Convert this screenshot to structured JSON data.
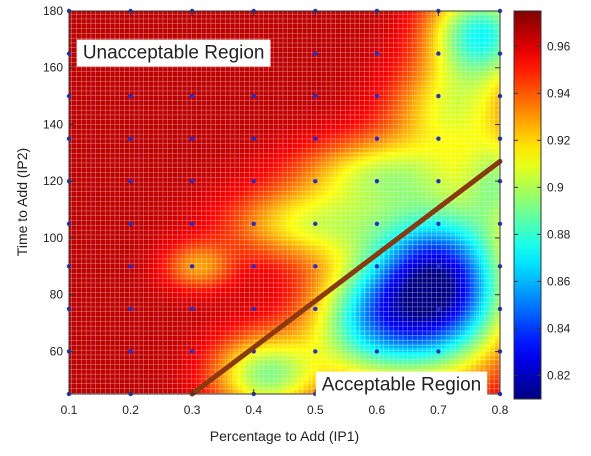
{
  "chart_data": {
    "type": "heatmap",
    "xlabel": "Percentage to Add (IP1)",
    "ylabel": "Time to Add  (IP2)",
    "xlim": [
      0.1,
      0.8
    ],
    "ylim": [
      45,
      180
    ],
    "xticks": [
      0.1,
      0.2,
      0.3,
      0.4,
      0.5,
      0.6,
      0.7,
      0.8
    ],
    "xtick_labels": [
      "0.1",
      "0.2",
      "0.3",
      "0.4",
      "0.5",
      "0.6",
      "0.7",
      "0.8"
    ],
    "yticks": [
      60,
      80,
      100,
      120,
      140,
      160,
      180
    ],
    "ytick_labels": [
      "60",
      "80",
      "100",
      "120",
      "140",
      "160",
      "180"
    ],
    "colorbar": {
      "range": [
        0.81,
        0.975
      ],
      "ticks": [
        0.82,
        0.84,
        0.86,
        0.88,
        0.9,
        0.92,
        0.94,
        0.96
      ],
      "tick_labels": [
        "0.82",
        "0.84",
        "0.86",
        "0.88",
        "0.9",
        "0.92",
        "0.94",
        "0.96"
      ],
      "colormap": "jet"
    },
    "z_base": 0.965,
    "features": [
      {
        "x": 0.7,
        "y": 83,
        "sx": 0.08,
        "sy": 20,
        "amp": -0.15
      },
      {
        "x": 0.58,
        "y": 70,
        "sx": 0.07,
        "sy": 15,
        "amp": -0.07
      },
      {
        "x": 0.42,
        "y": 52,
        "sx": 0.06,
        "sy": 10,
        "amp": -0.07
      },
      {
        "x": 0.49,
        "y": 105,
        "sx": 0.09,
        "sy": 9,
        "amp": -0.05
      },
      {
        "x": 0.6,
        "y": 123,
        "sx": 0.09,
        "sy": 9,
        "amp": -0.05
      },
      {
        "x": 0.77,
        "y": 172,
        "sx": 0.06,
        "sy": 12,
        "amp": -0.09
      },
      {
        "x": 0.72,
        "y": 145,
        "sx": 0.07,
        "sy": 12,
        "amp": -0.05
      },
      {
        "x": 0.31,
        "y": 90,
        "sx": 0.04,
        "sy": 6,
        "amp": -0.035
      },
      {
        "x": 0.8,
        "y": 120,
        "sx": 0.04,
        "sy": 12,
        "amp": -0.05
      }
    ],
    "boundary_line": {
      "x": [
        0.3,
        0.8
      ],
      "y": [
        45,
        127
      ],
      "color": "#8b3a10"
    },
    "sample_points": {
      "x": [
        0.1,
        0.2,
        0.3,
        0.4,
        0.5,
        0.6,
        0.7,
        0.8
      ],
      "y": [
        45,
        60,
        75,
        90,
        105,
        120,
        135,
        150,
        165,
        180
      ],
      "color": "#1f2fd0"
    },
    "annotations": [
      {
        "text": "Unacceptable Region",
        "x": 0.27,
        "y": 165
      },
      {
        "text": "Acceptable Region",
        "x": 0.64,
        "y": 48
      }
    ]
  }
}
